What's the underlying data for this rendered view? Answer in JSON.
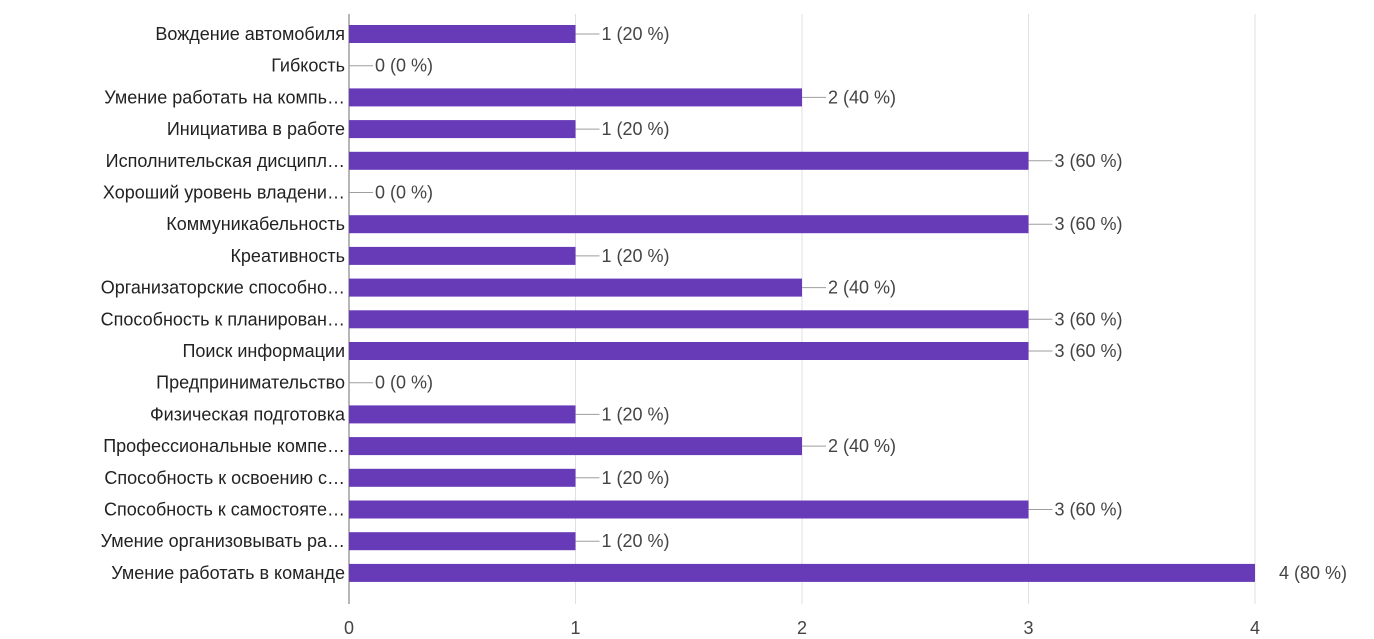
{
  "chart_data": {
    "type": "bar",
    "orientation": "horizontal",
    "categories": [
      "Вождение автомобиля",
      "Гибкость",
      "Умение работать на компь…",
      "Инициатива в работе",
      "Исполнительская дисципл…",
      "Хороший уровень владени…",
      "Коммуникабельность",
      "Креативность",
      "Организаторские способно…",
      "Способность к планирован…",
      "Поиск информации",
      "Предпринимательство",
      "Физическая подготовка",
      "Профессиональные компе…",
      "Способность к освоению с…",
      "Способность к самостояте…",
      "Умение организовывать ра…",
      "Умение работать в команде"
    ],
    "values": [
      1,
      0,
      2,
      1,
      3,
      0,
      3,
      1,
      2,
      3,
      3,
      0,
      1,
      2,
      1,
      3,
      1,
      4
    ],
    "data_labels": [
      "1 (20 %)",
      "0 (0 %)",
      "2 (40 %)",
      "1 (20 %)",
      "3 (60 %)",
      "0 (0 %)",
      "3 (60 %)",
      "1 (20 %)",
      "2 (40 %)",
      "3 (60 %)",
      "3 (60 %)",
      "0 (0 %)",
      "1 (20 %)",
      "2 (40 %)",
      "1 (20 %)",
      "3 (60 %)",
      "1 (20 %)",
      "4 (80 %)"
    ],
    "x_ticks": [
      "0",
      "1",
      "2",
      "3",
      "4"
    ],
    "xlim": [
      0,
      4
    ],
    "grid": true,
    "bar_color": "#673ab7",
    "title": "",
    "xlabel": "",
    "ylabel": ""
  }
}
